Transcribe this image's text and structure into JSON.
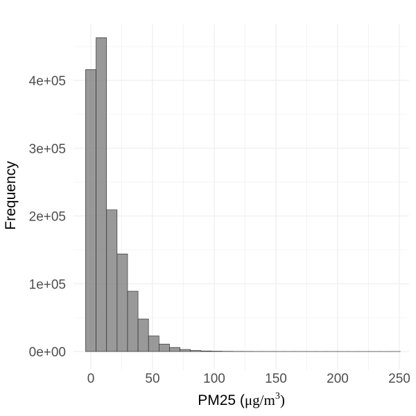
{
  "chart_data": {
    "type": "bar",
    "subtype": "histogram",
    "xlabel_parts": {
      "prefix": "PM25 (",
      "mu": "μ",
      "mid": "g/m",
      "sup": "3",
      "suffix": ")"
    },
    "ylabel": "Frequency",
    "xlim": [
      -5,
      250
    ],
    "ylim": [
      0,
      470000
    ],
    "x_ticks": [
      0,
      50,
      100,
      150,
      200,
      250
    ],
    "x_tick_labels": [
      "0",
      "50",
      "100",
      "150",
      "200",
      "250"
    ],
    "y_ticks": [
      0,
      100000,
      200000,
      300000,
      400000
    ],
    "y_tick_labels": [
      "0e+00",
      "1e+05",
      "2e+05",
      "3e+05",
      "4e+05"
    ],
    "bin_width": 8.5,
    "bins": [
      {
        "start": -4.25,
        "end": 4.25,
        "count": 416000
      },
      {
        "start": 4.25,
        "end": 12.75,
        "count": 463000
      },
      {
        "start": 12.75,
        "end": 21.25,
        "count": 209000
      },
      {
        "start": 21.25,
        "end": 29.75,
        "count": 144000
      },
      {
        "start": 29.75,
        "end": 38.25,
        "count": 89000
      },
      {
        "start": 38.25,
        "end": 46.75,
        "count": 48000
      },
      {
        "start": 46.75,
        "end": 55.25,
        "count": 23000
      },
      {
        "start": 55.25,
        "end": 63.75,
        "count": 11000
      },
      {
        "start": 63.75,
        "end": 72.25,
        "count": 6000
      },
      {
        "start": 72.25,
        "end": 80.75,
        "count": 3000
      },
      {
        "start": 80.75,
        "end": 89.25,
        "count": 1500
      },
      {
        "start": 89.25,
        "end": 97.75,
        "count": 800
      },
      {
        "start": 97.75,
        "end": 106.25,
        "count": 500
      },
      {
        "start": 106.25,
        "end": 114.75,
        "count": 300
      },
      {
        "start": 114.75,
        "end": 123.25,
        "count": 200
      },
      {
        "start": 123.25,
        "end": 131.75,
        "count": 150
      },
      {
        "start": 131.75,
        "end": 140.25,
        "count": 100
      },
      {
        "start": 140.25,
        "end": 148.75,
        "count": 80
      },
      {
        "start": 148.75,
        "end": 157.25,
        "count": 60
      },
      {
        "start": 157.25,
        "end": 165.75,
        "count": 50
      },
      {
        "start": 165.75,
        "end": 174.25,
        "count": 40
      },
      {
        "start": 174.25,
        "end": 182.75,
        "count": 30
      },
      {
        "start": 182.75,
        "end": 191.25,
        "count": 25
      },
      {
        "start": 191.25,
        "end": 199.75,
        "count": 20
      },
      {
        "start": 199.75,
        "end": 208.25,
        "count": 15
      },
      {
        "start": 208.25,
        "end": 216.75,
        "count": 12
      },
      {
        "start": 216.75,
        "end": 225.25,
        "count": 10
      },
      {
        "start": 225.25,
        "end": 233.75,
        "count": 8
      },
      {
        "start": 233.75,
        "end": 242.25,
        "count": 6
      },
      {
        "start": 242.25,
        "end": 250.75,
        "count": 5
      }
    ],
    "bar_fill": "#7f7f7f",
    "bar_fill_opacity": 0.8,
    "bar_stroke": "#333333",
    "grid": true,
    "grid_color": "#ebebeb",
    "legend": "none"
  }
}
